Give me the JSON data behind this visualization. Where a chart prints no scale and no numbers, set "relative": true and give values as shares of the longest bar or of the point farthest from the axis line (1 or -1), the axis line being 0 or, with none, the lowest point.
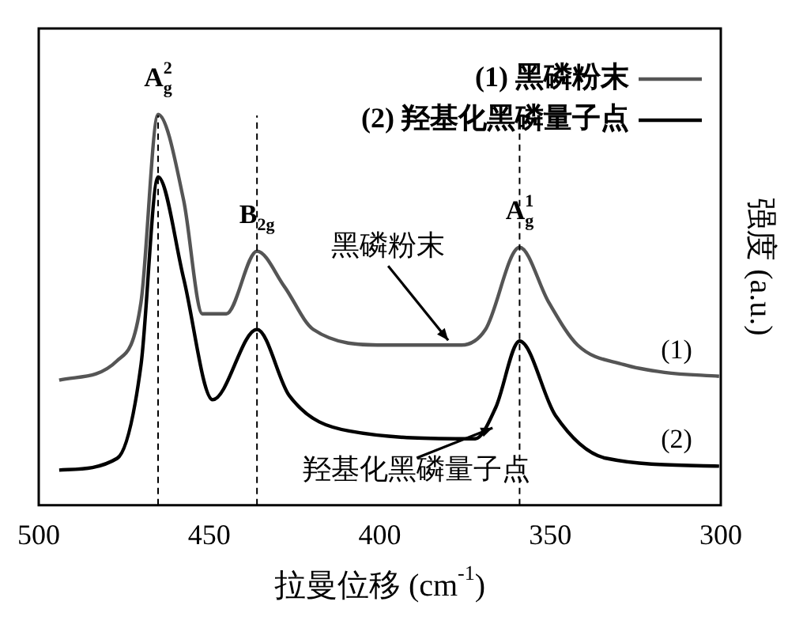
{
  "chart_data": {
    "type": "line",
    "relative": true,
    "xlabel": "拉曼位移 (cm$^{-1}$)",
    "ylabel": "强度 (a.u.)",
    "xlim": [
      500,
      300
    ],
    "xticks": [
      500,
      450,
      400,
      350,
      300
    ],
    "tick_labels": "x",
    "grid": false,
    "legend": "top right",
    "line_style": "solid",
    "marker": "none",
    "series": [
      {
        "name": "(1) 黑磷粉末",
        "color": "#555555",
        "x": [
          494,
          477,
          470,
          465,
          457.5,
          452,
          445,
          436,
          428,
          419.5,
          399,
          376,
          369,
          359,
          350.5,
          342,
          328.5,
          316.5,
          300.5
        ],
        "values": [
          0.32,
          0.37,
          0.52,
          1.0,
          0.78,
          0.49,
          0.49,
          0.65,
          0.56,
          0.45,
          0.41,
          0.41,
          0.45,
          0.66,
          0.52,
          0.41,
          0.36,
          0.34,
          0.33
        ]
      },
      {
        "name": "(2) 羟基化黑磷量子点",
        "color": "#000000",
        "x": [
          494,
          477,
          470,
          465,
          457.5,
          449,
          436,
          426.5,
          409,
          372,
          366,
          359,
          348.5,
          333.5,
          300.5
        ],
        "values": [
          0.09,
          0.12,
          0.36,
          0.84,
          0.58,
          0.27,
          0.45,
          0.28,
          0.19,
          0.17,
          0.25,
          0.42,
          0.23,
          0.12,
          0.1
        ]
      }
    ],
    "ref_lines": [
      {
        "axis": "x",
        "value": 465,
        "label": "A$^{2}$$_{g}$",
        "line_style": "dashed",
        "color": "#000000"
      },
      {
        "axis": "x",
        "value": 436,
        "label": "B$_{2g}$",
        "line_style": "dashed",
        "color": "#000000"
      },
      {
        "axis": "x",
        "value": 359,
        "label": "A$^{1}$$_{g}$",
        "line_style": "dashed",
        "color": "#000000"
      }
    ],
    "annotations": [
      {
        "text": "黑磷粉末",
        "x": 379,
        "y": 0.41
      },
      {
        "text": "羟基化黑磷量子点",
        "x": 366,
        "y": 0.21
      },
      "(1)",
      "(2)"
    ]
  }
}
